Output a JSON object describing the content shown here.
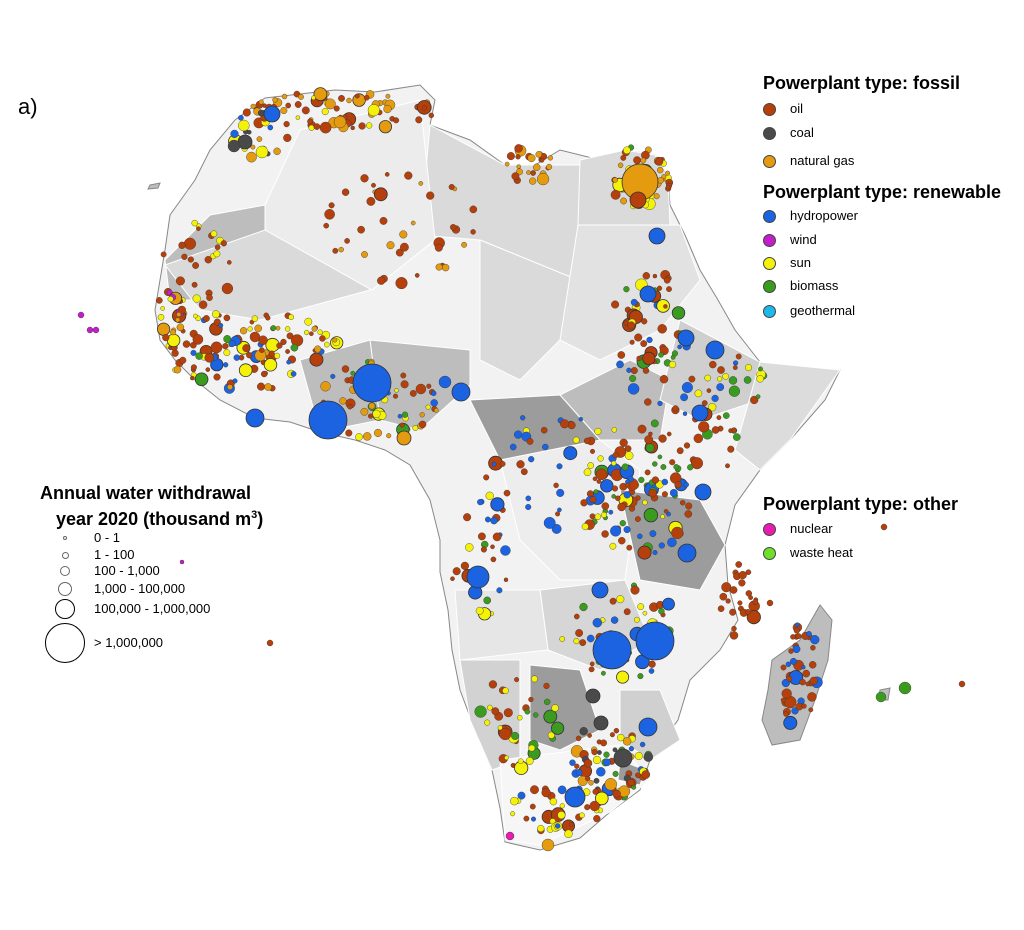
{
  "panel_label": "a)",
  "legend_fossil": {
    "title": "Powerplant type: fossil",
    "items": [
      {
        "label": "oil",
        "color": "#b5400c"
      },
      {
        "label": "coal",
        "color": "#4a4a4a"
      },
      {
        "label": "natural gas",
        "color": "#e49b10"
      }
    ]
  },
  "legend_renewable": {
    "title": "Powerplant type: renewable",
    "items": [
      {
        "label": "hydropower",
        "color": "#1b63e0"
      },
      {
        "label": "wind",
        "color": "#c21ec9"
      },
      {
        "label": "sun",
        "color": "#f5f20a"
      },
      {
        "label": "biomass",
        "color": "#3a9b1f"
      },
      {
        "label": "geothermal",
        "color": "#1fb8e8"
      }
    ]
  },
  "legend_other": {
    "title": "Powerplant type: other",
    "items": [
      {
        "label": "nuclear",
        "color": "#e81cb0"
      },
      {
        "label": "waste heat",
        "color": "#6ee02a"
      }
    ]
  },
  "size_legend": {
    "title_line1": "Annual water withdrawal",
    "title_line2": "year 2020 (thousand m",
    "title_sup": "3",
    "title_end": ")",
    "classes": [
      "0 - 1",
      "1 - 100",
      "100 - 1,000",
      "1,000 - 100,000",
      "100,000 - 1,000,000",
      "> 1,000,000"
    ]
  },
  "map": {
    "land_color": "#f2f2f2",
    "medium_gray": "#bdbdbd",
    "dark_gray": "#9c9c9c",
    "light_gray": "#dadada"
  }
}
